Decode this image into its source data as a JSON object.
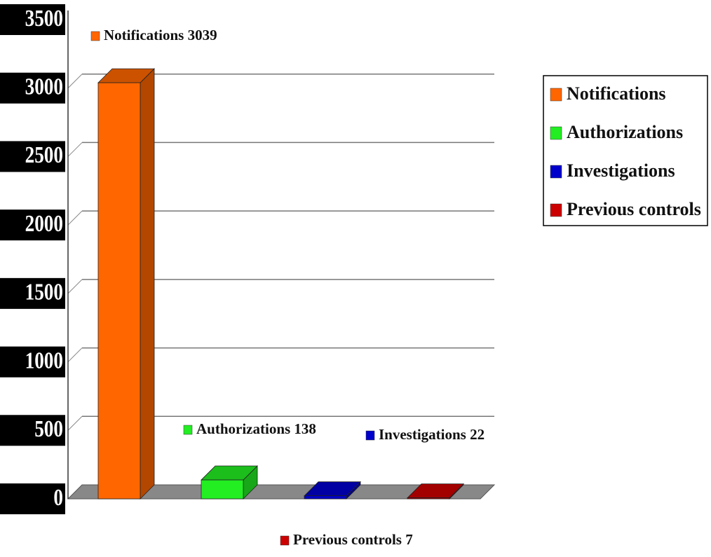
{
  "chart_data": {
    "type": "bar3d",
    "categories": [
      "Notifications",
      "Authorizations",
      "Investigations",
      "Previous controls"
    ],
    "values": [
      3039,
      138,
      22,
      7
    ],
    "value_labels": [
      "Notifications 3039",
      "Authorizations 138",
      "Investigations 22",
      "Previous controls 7"
    ],
    "colors": [
      "#ff6600",
      "#22ee22",
      "#0000cc",
      "#cc0000"
    ],
    "ylim": [
      0,
      3500
    ],
    "yticks": [
      0,
      500,
      1000,
      1500,
      2000,
      2500,
      3000,
      3500
    ],
    "grid": true,
    "legend": "right"
  }
}
